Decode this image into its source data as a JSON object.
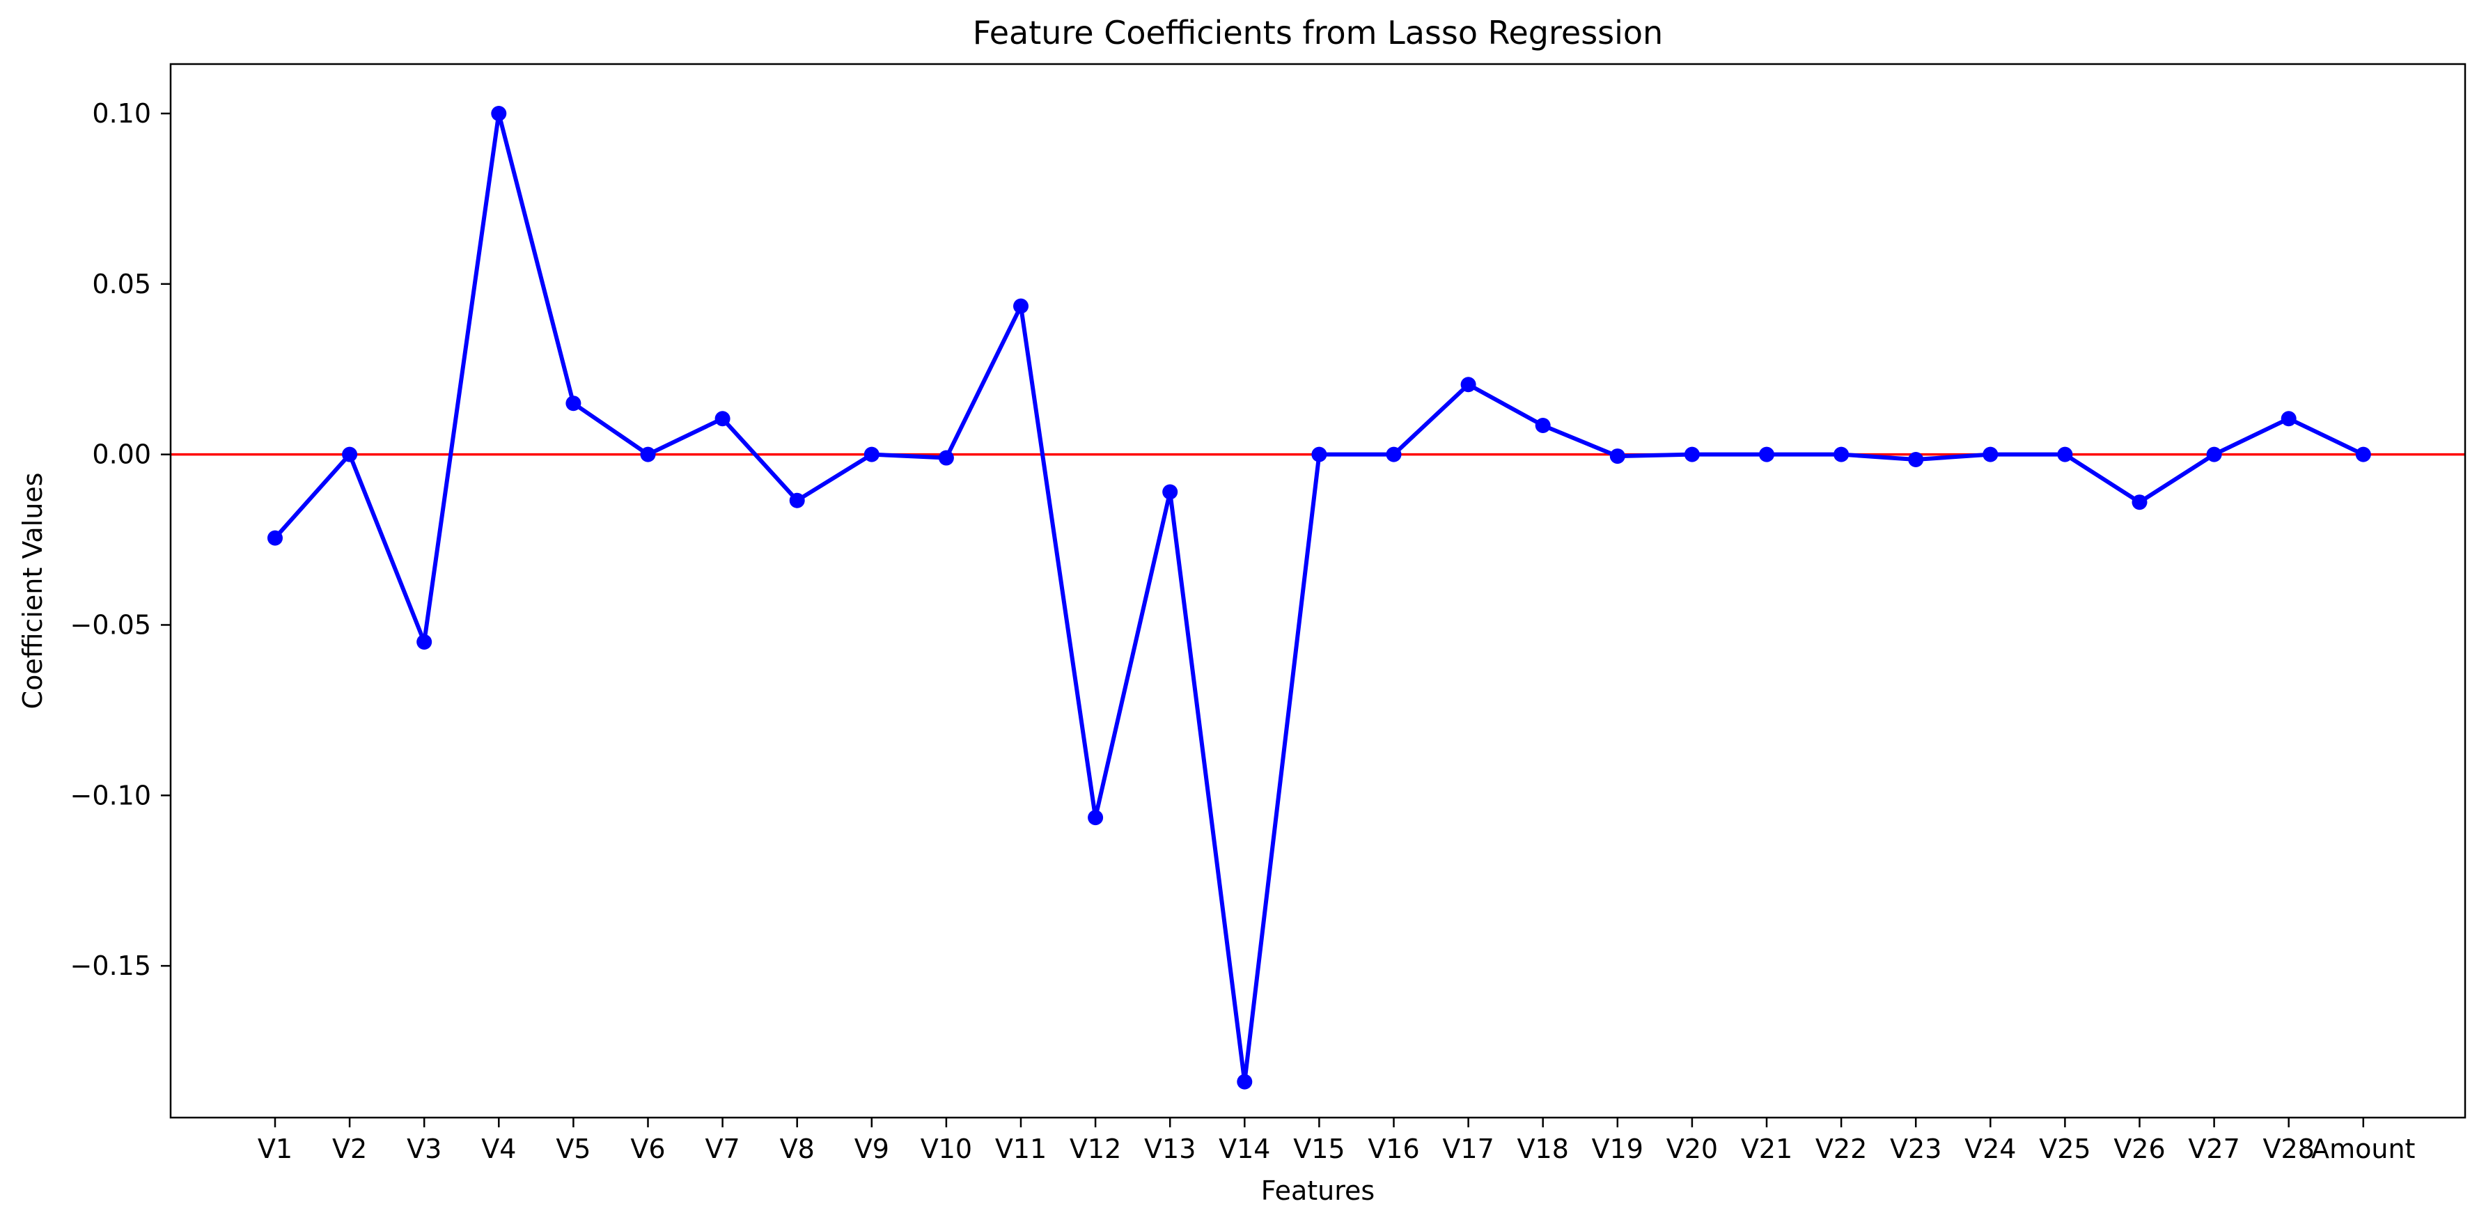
{
  "chart_data": {
    "type": "line",
    "title": "Feature Coefficients from Lasso Regression",
    "xlabel": "Features",
    "ylabel": "Coefficient Values",
    "categories": [
      "V1",
      "V2",
      "V3",
      "V4",
      "V5",
      "V6",
      "V7",
      "V8",
      "V9",
      "V10",
      "V11",
      "V12",
      "V13",
      "V14",
      "V15",
      "V16",
      "V17",
      "V18",
      "V19",
      "V20",
      "V21",
      "V22",
      "V23",
      "V24",
      "V25",
      "V26",
      "V27",
      "V28",
      "Amount"
    ],
    "series": [
      {
        "values": [
          -0.0245,
          0.0,
          -0.055,
          0.1,
          0.015,
          0.0,
          0.0105,
          -0.0135,
          0.0,
          -0.001,
          0.0435,
          -0.1065,
          -0.011,
          -0.184,
          0.0,
          0.0,
          0.0205,
          0.0085,
          -0.0005,
          0.0,
          0.0,
          0.0,
          -0.0015,
          0.0,
          0.0,
          -0.014,
          0.0,
          0.0105,
          0.0
        ],
        "color": "#0000ff"
      }
    ],
    "reference_line": {
      "y": 0.0,
      "color": "#ff0000"
    },
    "ylim": [
      -0.1945,
      0.1145
    ],
    "yticks": [
      -0.15,
      -0.1,
      -0.05,
      0.0,
      0.05,
      0.1
    ],
    "ytick_labels": [
      "−0.15",
      "−0.10",
      "−0.05",
      "0.00",
      "0.05",
      "0.10"
    ],
    "grid": false,
    "legend": "none"
  }
}
